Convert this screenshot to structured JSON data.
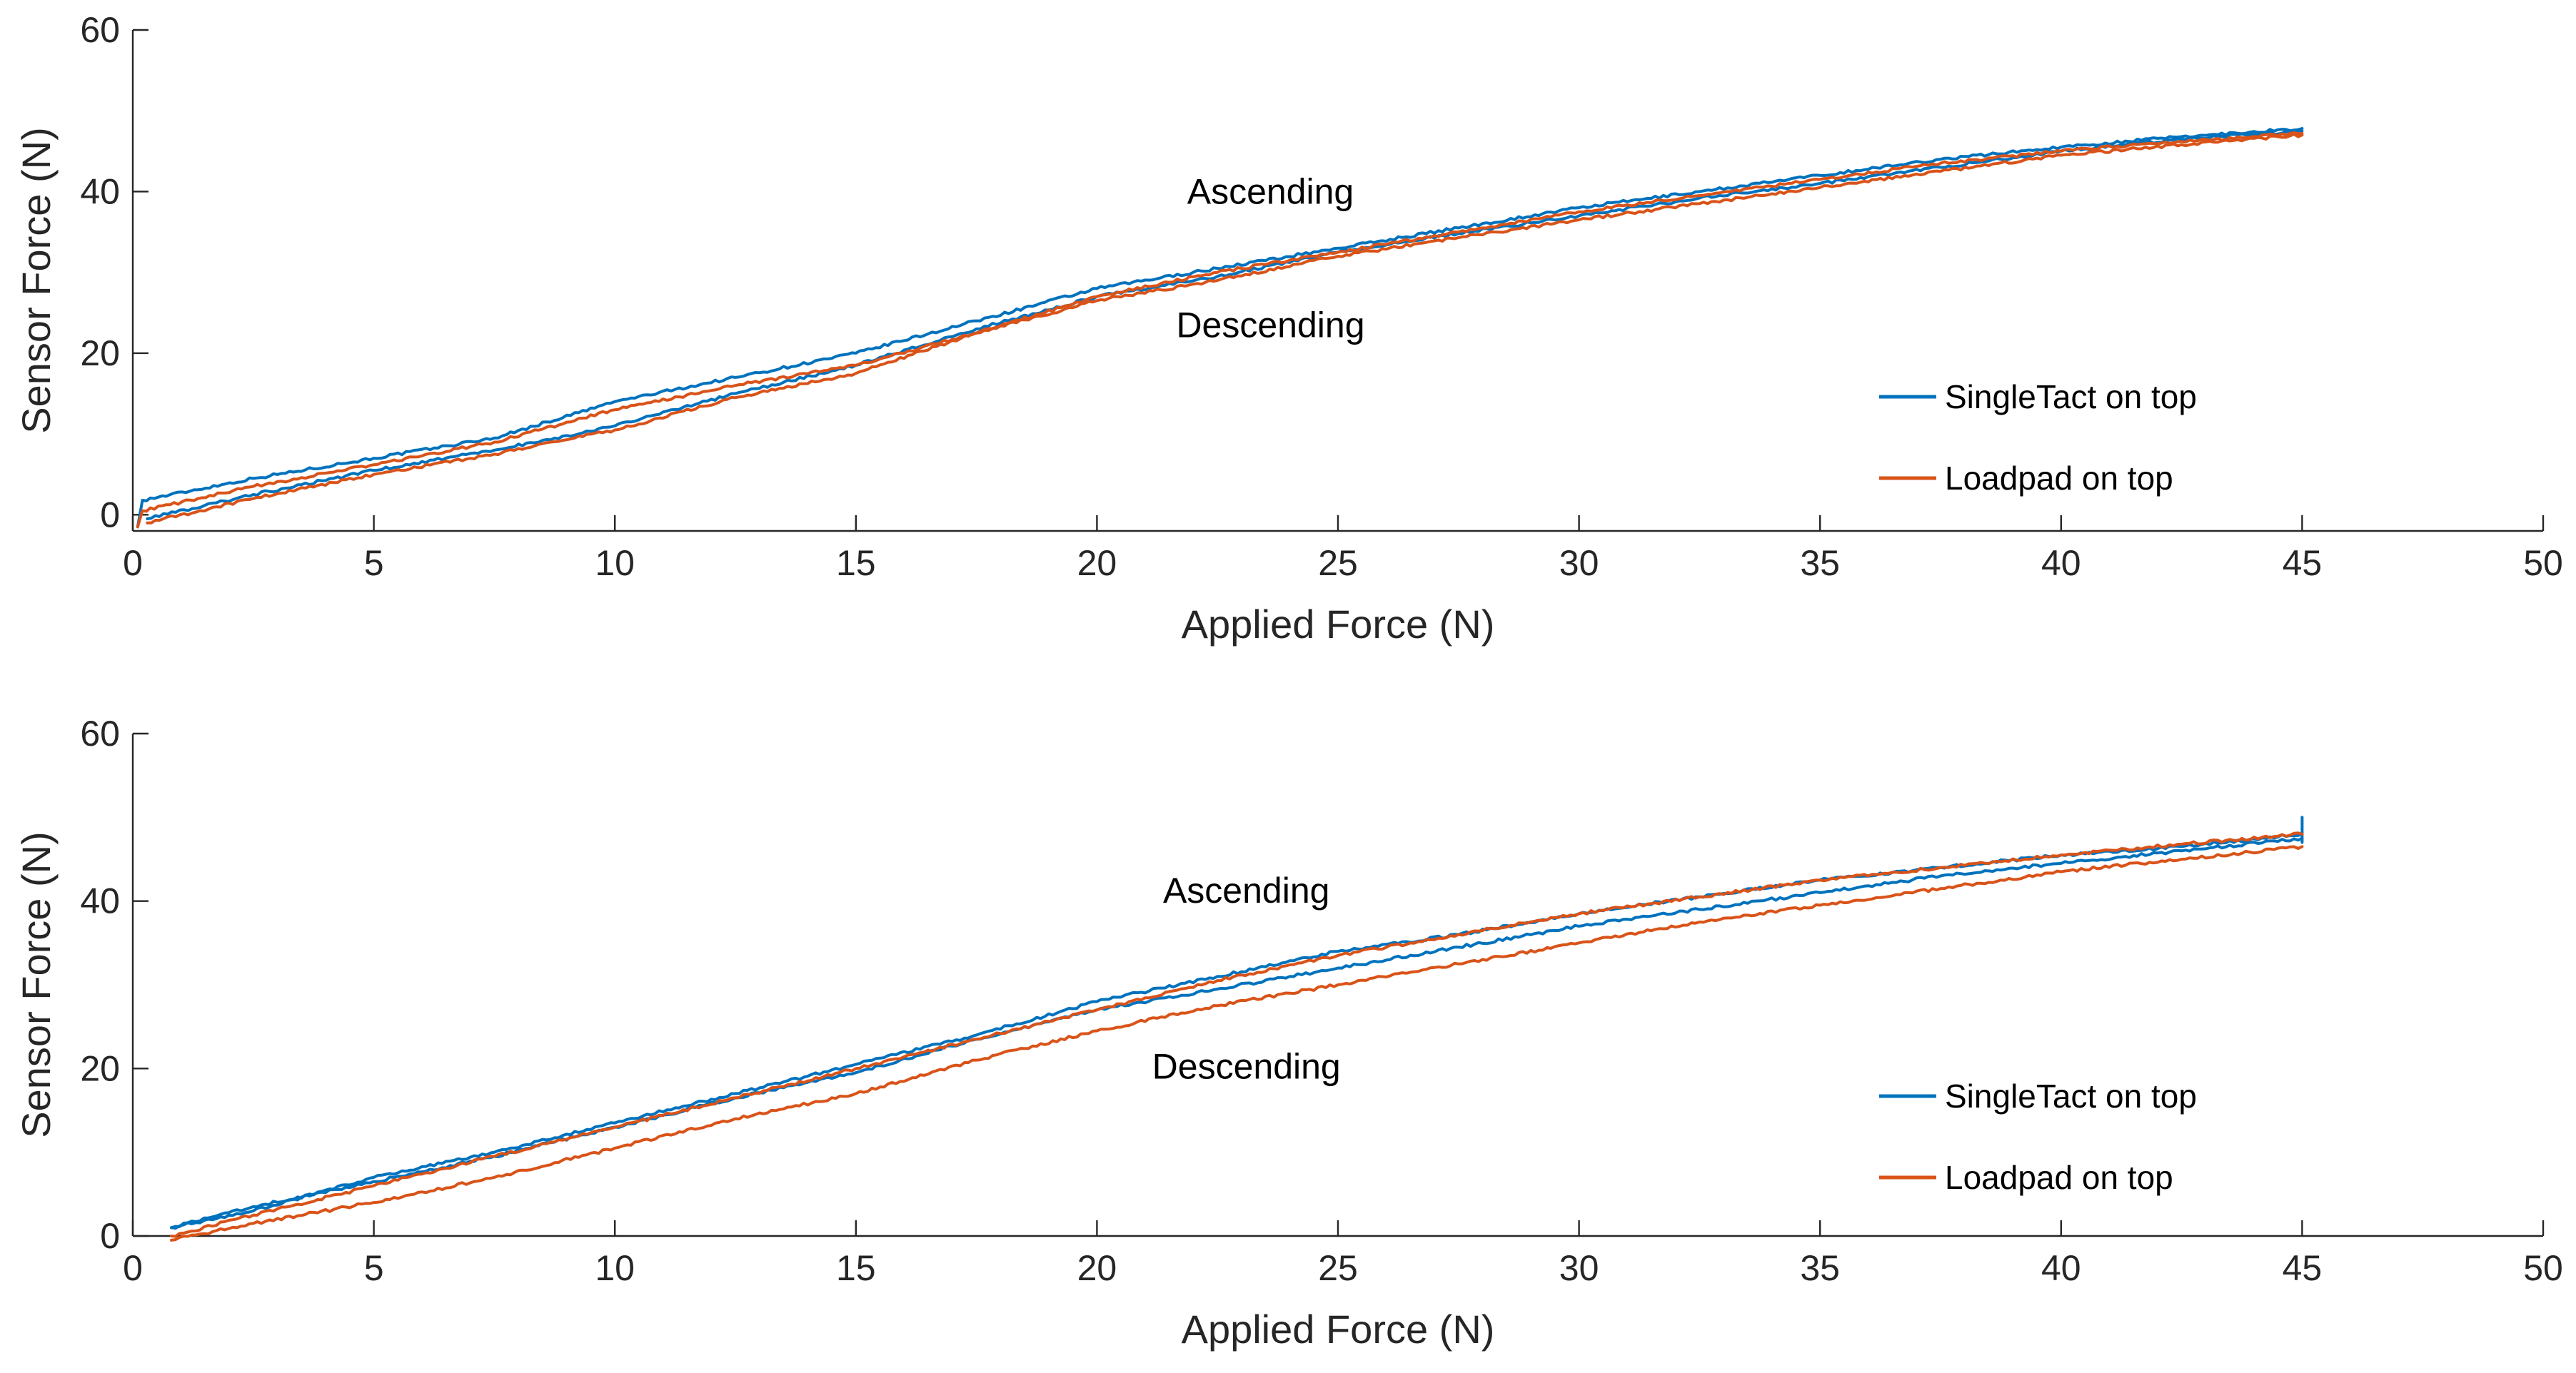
{
  "chart_data": [
    {
      "type": "line",
      "xlabel": "Applied Force (N)",
      "ylabel": "Sensor Force (N)",
      "xlim": [
        0,
        50
      ],
      "ylim": [
        -2,
        60
      ],
      "xticks": [
        "0",
        "5",
        "10",
        "15",
        "20",
        "25",
        "30",
        "35",
        "40",
        "45",
        "50"
      ],
      "yticks": [
        "0",
        "20",
        "40",
        "60"
      ],
      "grid": false,
      "legend_position": "bottom-right",
      "annotations": [
        {
          "text": "Ascending",
          "x": 23.6,
          "y": 38.5
        },
        {
          "text": "Descending",
          "x": 23.6,
          "y": 22.0
        }
      ],
      "series": [
        {
          "name": "SingleTact on top",
          "color": "#0072BD",
          "role": "ascending",
          "x": [
            0.1,
            0.2,
            2.5,
            5,
            7.5,
            10,
            12.5,
            15,
            17.5,
            20,
            22.5,
            25,
            27.5,
            30,
            32.5,
            35,
            37.5,
            40,
            42.5,
            45
          ],
          "y": [
            -1.5,
            1.8,
            4.5,
            7.0,
            9.5,
            14.0,
            17.0,
            20.0,
            24.0,
            28.0,
            30.5,
            33.0,
            35.5,
            38.0,
            40.0,
            42.0,
            44.0,
            45.5,
            46.8,
            47.8
          ]
        },
        {
          "name": "SingleTact on top",
          "color": "#0072BD",
          "role": "descending",
          "x": [
            45,
            42.5,
            40,
            37.5,
            35,
            32.5,
            30,
            27.5,
            25,
            22.5,
            20,
            17.5,
            15,
            12.5,
            10,
            7.5,
            5,
            2.5,
            0.3
          ],
          "y": [
            47.5,
            46.5,
            45.0,
            43.0,
            41.0,
            39.2,
            37.0,
            34.8,
            32.5,
            29.5,
            27.0,
            23.0,
            18.5,
            15.0,
            11.0,
            8.0,
            5.5,
            2.5,
            -0.5
          ]
        },
        {
          "name": "Loadpad on top",
          "color": "#D95319",
          "role": "ascending",
          "x": [
            0.1,
            0.2,
            2.5,
            5,
            7.5,
            10,
            12.5,
            15,
            17.5,
            20,
            22.5,
            25,
            27.5,
            30,
            32.5,
            35,
            37.5,
            40,
            42.5,
            45
          ],
          "y": [
            -1.5,
            0.5,
            3.5,
            6.2,
            9.0,
            13.0,
            16.0,
            18.5,
            22.5,
            27.0,
            30.0,
            32.5,
            35.0,
            37.5,
            39.5,
            41.5,
            43.5,
            45.0,
            46.2,
            47.2
          ]
        },
        {
          "name": "Loadpad on top",
          "color": "#D95319",
          "role": "descending",
          "x": [
            45,
            42.5,
            40,
            37.5,
            35,
            32.5,
            30,
            27.5,
            25,
            22.5,
            20,
            17.5,
            15,
            12.5,
            10,
            7.5,
            5,
            2.5,
            0.3
          ],
          "y": [
            47.0,
            45.8,
            44.5,
            42.5,
            40.5,
            38.5,
            36.5,
            34.3,
            32.0,
            29.0,
            26.5,
            22.5,
            17.5,
            14.5,
            10.5,
            7.5,
            5.0,
            2.0,
            -1.0
          ]
        }
      ]
    },
    {
      "type": "line",
      "xlabel": "Applied Force (N)",
      "ylabel": "Sensor Force (N)",
      "xlim": [
        0,
        50
      ],
      "ylim": [
        0,
        60
      ],
      "xticks": [
        "0",
        "5",
        "10",
        "15",
        "20",
        "25",
        "30",
        "35",
        "40",
        "45",
        "50"
      ],
      "yticks": [
        "0",
        "20",
        "40",
        "60"
      ],
      "grid": false,
      "legend_position": "bottom-right",
      "annotations": [
        {
          "text": "Ascending",
          "x": 23.1,
          "y": 39.8
        },
        {
          "text": "Descending",
          "x": 23.1,
          "y": 18.8
        }
      ],
      "series": [
        {
          "name": "SingleTact on top",
          "color": "#0072BD",
          "role": "ascending",
          "x": [
            0.8,
            2.5,
            5,
            7.5,
            10,
            12.5,
            15,
            17.5,
            20,
            22.5,
            25,
            27.5,
            30,
            32.5,
            35,
            37.5,
            40,
            42.5,
            45,
            45,
            45
          ],
          "y": [
            1.0,
            3.0,
            7.0,
            10.0,
            13.5,
            17.0,
            20.5,
            24.0,
            28.0,
            31.0,
            34.0,
            36.0,
            38.5,
            40.5,
            42.5,
            44.0,
            45.5,
            46.5,
            48.0,
            50.0,
            47.0
          ]
        },
        {
          "name": "SingleTact on top",
          "color": "#0072BD",
          "role": "descending",
          "x": [
            45,
            42.5,
            40,
            37.5,
            35,
            32.5,
            30,
            27.5,
            25,
            22.5,
            20,
            17.5,
            15,
            12.5,
            10,
            7.5,
            5,
            2.5,
            0.8
          ],
          "y": [
            47.5,
            46.0,
            44.5,
            43.0,
            41.0,
            39.0,
            37.0,
            34.5,
            32.0,
            29.5,
            27.0,
            23.5,
            19.5,
            16.5,
            13.0,
            9.5,
            6.5,
            3.5,
            1.0
          ]
        },
        {
          "name": "Loadpad on top",
          "color": "#D95319",
          "role": "ascending",
          "x": [
            0.8,
            2.5,
            5,
            7.5,
            10,
            12.5,
            15,
            17.5,
            20,
            22.5,
            25,
            27.5,
            30,
            32.5,
            35,
            37.5,
            40,
            42.5,
            45
          ],
          "y": [
            0.0,
            2.5,
            6.0,
            9.5,
            13.0,
            16.5,
            20.0,
            23.5,
            27.0,
            30.5,
            33.5,
            36.0,
            38.5,
            40.5,
            42.5,
            44.0,
            45.5,
            46.8,
            48.0
          ]
        },
        {
          "name": "Loadpad on top",
          "color": "#D95319",
          "role": "descending",
          "x": [
            45,
            42.5,
            40,
            37.5,
            35,
            32.5,
            30,
            27.5,
            25,
            22.5,
            20,
            17.5,
            15,
            12.5,
            10,
            7.5,
            5,
            2.5,
            0.8
          ],
          "y": [
            46.5,
            45.0,
            43.5,
            41.5,
            39.5,
            37.5,
            35.0,
            32.5,
            30.0,
            27.5,
            24.5,
            21.0,
            17.0,
            14.0,
            10.5,
            7.0,
            4.0,
            1.5,
            -0.5
          ]
        }
      ]
    }
  ]
}
